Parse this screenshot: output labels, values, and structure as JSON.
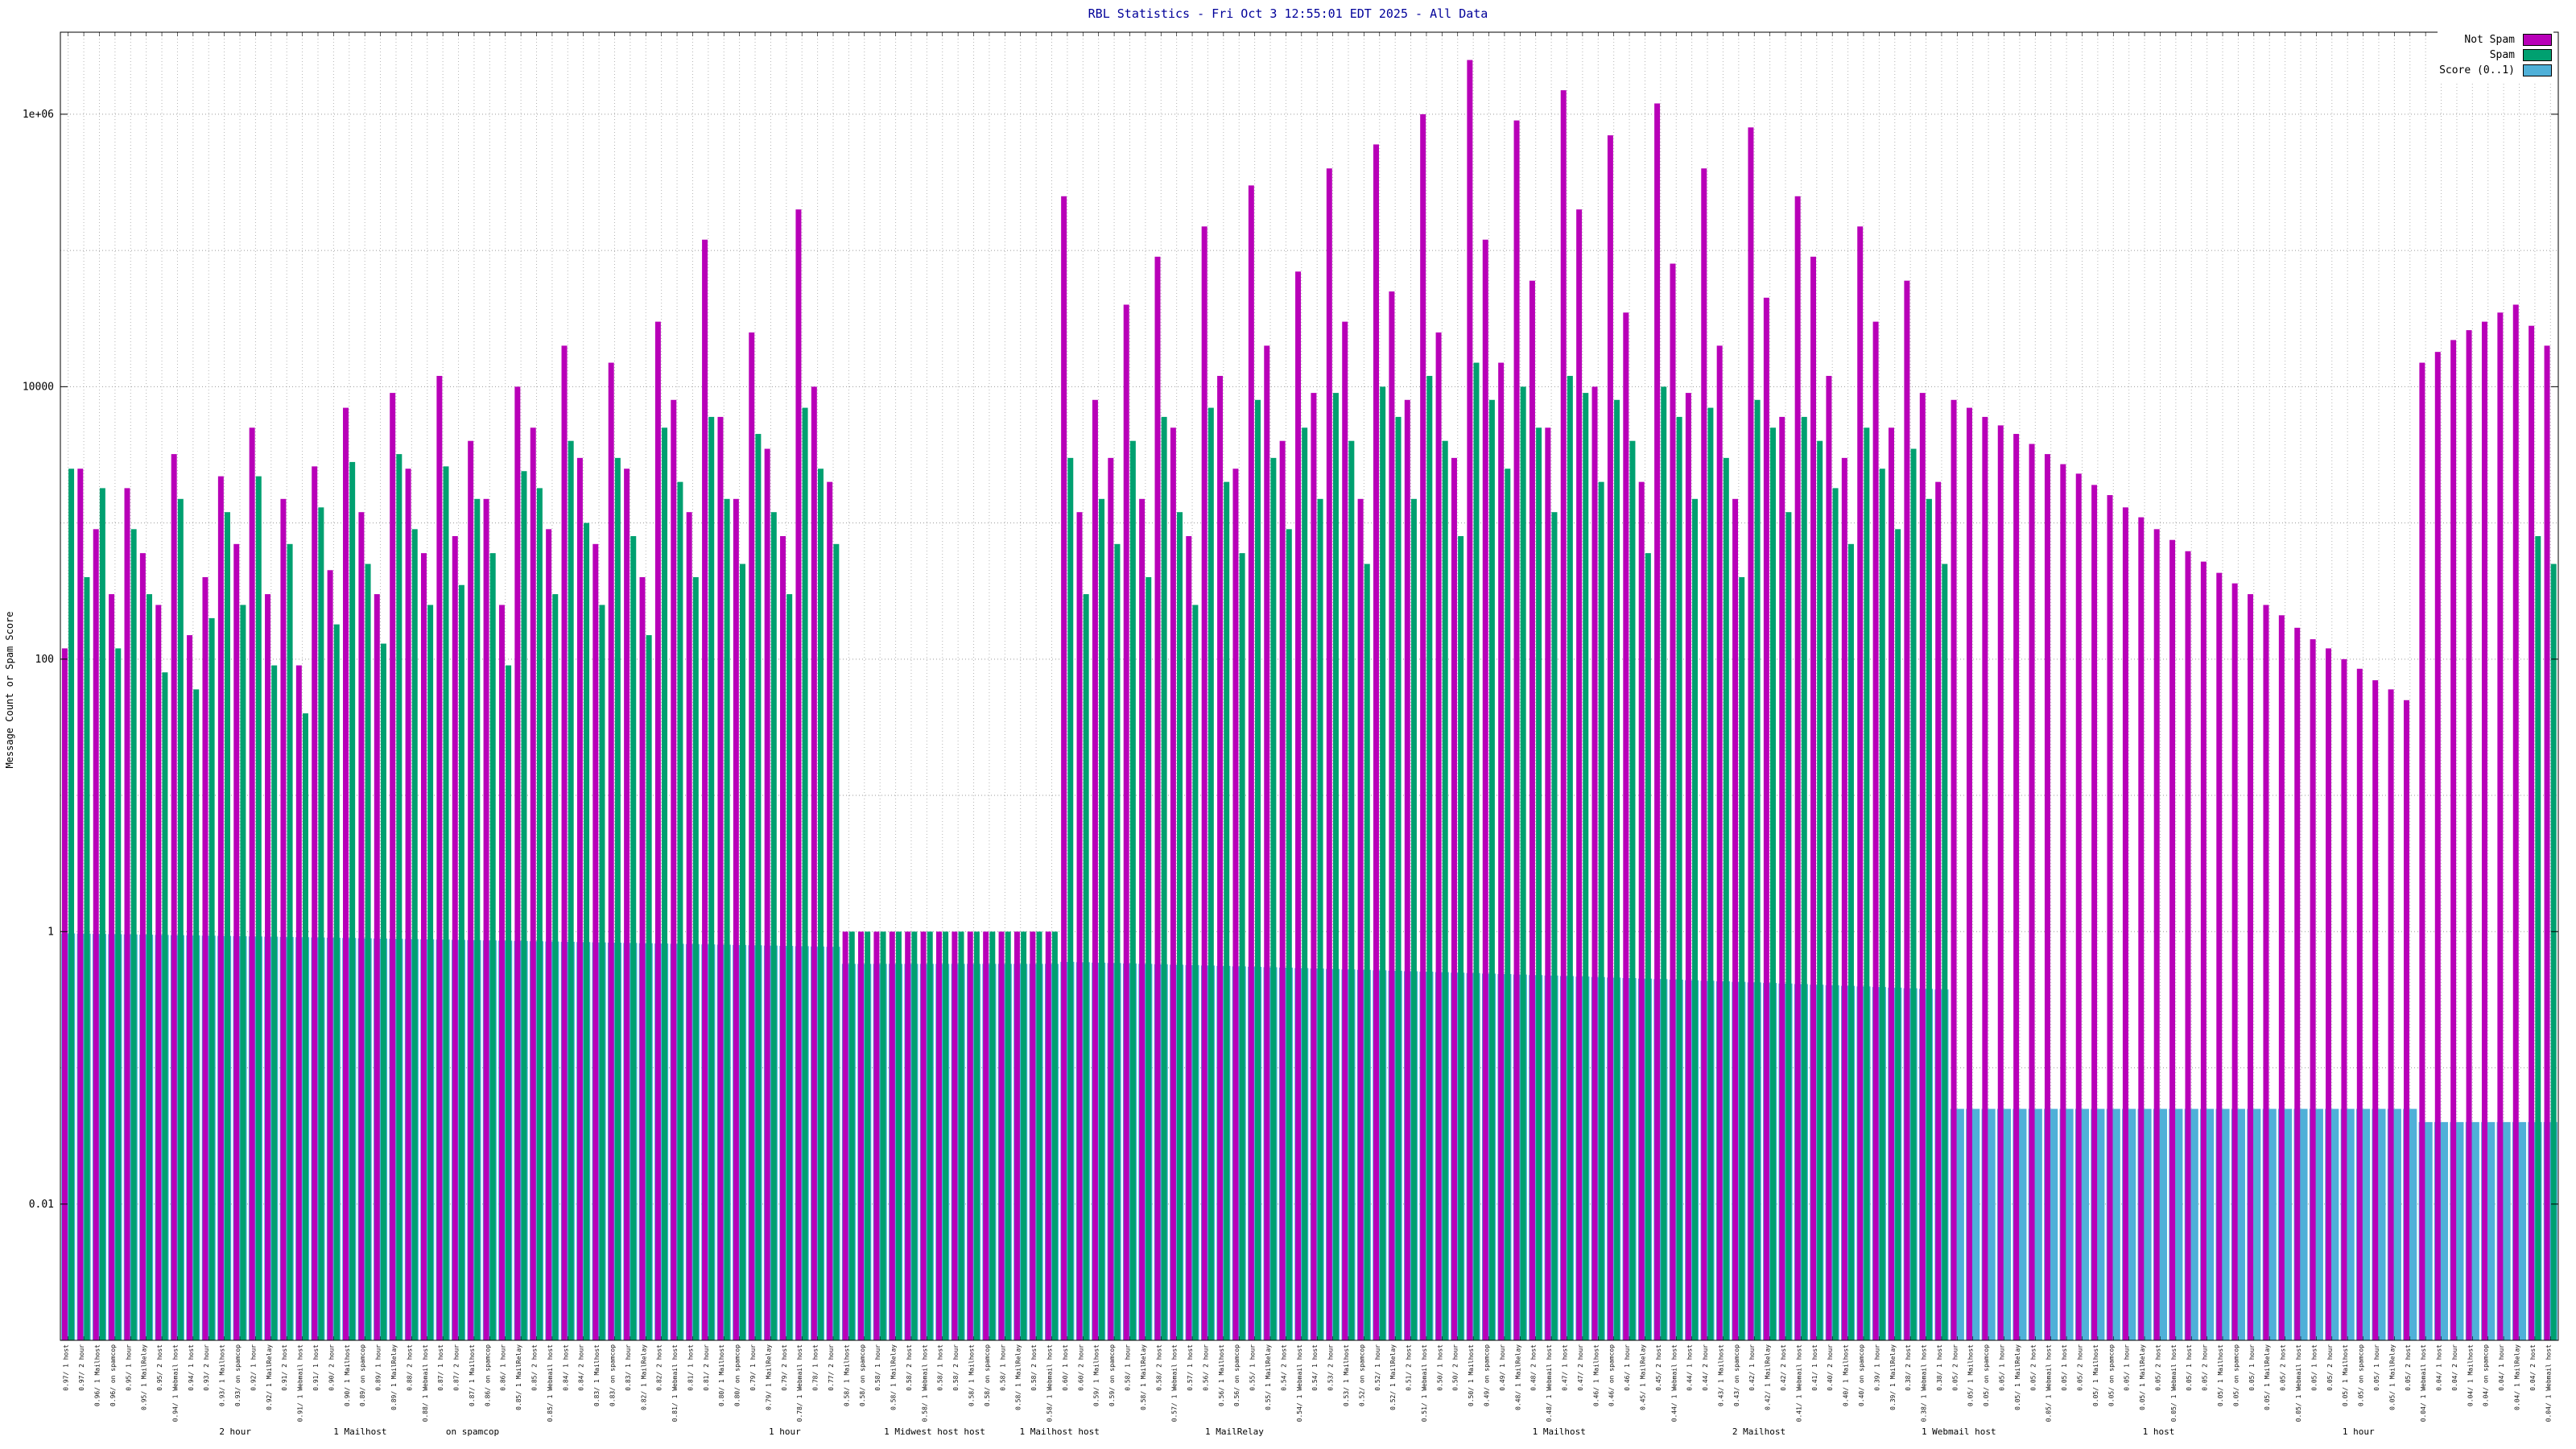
{
  "chart_data": {
    "type": "bar",
    "title": "RBL Statistics - Fri Oct 3 12:55:01 EDT 2025 - All Data",
    "title_color": "#000099",
    "ylabel": "Message Count or Spam Score",
    "log_y": true,
    "y_min": 0.001,
    "y_max": 4000000,
    "grid": true,
    "legend_position": "top-right",
    "yticks": [
      {
        "v": 1000000,
        "label": "1e+06"
      },
      {
        "v": 10000,
        "label": "10000"
      },
      {
        "v": 100,
        "label": "100"
      },
      {
        "v": 1,
        "label": "1"
      },
      {
        "v": 0.01,
        "label": "0.01"
      }
    ],
    "xtick_pool": [
      "1 host",
      "2 hour",
      "1 Mailhost",
      "on spamcop",
      "1 hour",
      "1 MailRelay",
      "2 host",
      "1 Webmail host"
    ],
    "x_annotations": [
      {
        "t": "2 hour",
        "f": 0.07
      },
      {
        "t": "1 Mailhost",
        "f": 0.12
      },
      {
        "t": "on spamcop",
        "f": 0.165
      },
      {
        "t": "1 hour",
        "f": 0.29
      },
      {
        "t": "1 Midwest host host",
        "f": 0.35
      },
      {
        "t": "1 Mailhost host",
        "f": 0.4
      },
      {
        "t": "1 MailRelay",
        "f": 0.47
      },
      {
        "t": "1 Mailhost",
        "f": 0.6
      },
      {
        "t": "2 Mailhost",
        "f": 0.68
      },
      {
        "t": "1 Webmail host",
        "f": 0.76
      },
      {
        "t": "1 host",
        "f": 0.84
      },
      {
        "t": "1 hour",
        "f": 0.92
      }
    ],
    "series": [
      {
        "name": "Not Spam",
        "color": "#b800b8",
        "values": [
          120,
          2500,
          900,
          300,
          1800,
          600,
          250,
          3200,
          150,
          400,
          2200,
          700,
          5000,
          300,
          1500,
          90,
          2600,
          450,
          7000,
          1200,
          300,
          9000,
          2500,
          600,
          12000,
          800,
          4000,
          1500,
          250,
          10000,
          5000,
          900,
          20000,
          3000,
          700,
          15000,
          2500,
          400,
          30000,
          8000,
          1200,
          120000,
          6000,
          1500,
          25000,
          3500,
          800,
          200000,
          10000,
          2000,
          1,
          1,
          1,
          1,
          1,
          1,
          1,
          1,
          1,
          1,
          1,
          1,
          1,
          1,
          250000,
          1200,
          8000,
          3000,
          40000,
          1500,
          90000,
          5000,
          800,
          150000,
          12000,
          2500,
          300000,
          20000,
          4000,
          70000,
          9000,
          400000,
          30000,
          1500,
          600000,
          50000,
          8000,
          1000000,
          25000,
          3000,
          2500000,
          120000,
          15000,
          900000,
          60000,
          5000,
          1500000,
          200000,
          10000,
          700000,
          35000,
          2000,
          1200000,
          80000,
          9000,
          400000,
          20000,
          1500,
          800000,
          45000,
          6000,
          250000,
          90000,
          12000,
          3000,
          150000,
          30000,
          5000,
          60000,
          9000,
          2000,
          8000,
          7000,
          6000,
          5200,
          4500,
          3800,
          3200,
          2700,
          2300,
          1900,
          1600,
          1300,
          1100,
          900,
          750,
          620,
          520,
          430,
          360,
          300,
          250,
          210,
          170,
          140,
          120,
          100,
          85,
          70,
          60,
          50,
          15000,
          18000,
          22000,
          26000,
          30000,
          35000,
          40000,
          28000,
          20000
        ]
      },
      {
        "name": "Spam",
        "color": "#00a070",
        "values": [
          2500,
          400,
          1800,
          120,
          900,
          300,
          80,
          1500,
          60,
          200,
          1200,
          250,
          2200,
          90,
          700,
          40,
          1300,
          180,
          2800,
          500,
          130,
          3200,
          900,
          250,
          2600,
          350,
          1500,
          600,
          90,
          2400,
          1800,
          300,
          4000,
          1000,
          250,
          3000,
          800,
          150,
          5000,
          2000,
          400,
          6000,
          1500,
          500,
          4500,
          1200,
          300,
          7000,
          2500,
          700,
          1,
          1,
          1,
          1,
          1,
          1,
          1,
          1,
          1,
          1,
          1,
          1,
          1,
          1,
          3000,
          300,
          1500,
          700,
          4000,
          400,
          6000,
          1200,
          250,
          7000,
          2000,
          600,
          8000,
          3000,
          900,
          5000,
          1500,
          9000,
          4000,
          500,
          10000,
          6000,
          1500,
          12000,
          4000,
          800,
          15000,
          8000,
          2500,
          10000,
          5000,
          1200,
          12000,
          9000,
          2000,
          8000,
          4000,
          600,
          10000,
          6000,
          1500,
          7000,
          3000,
          400,
          8000,
          5000,
          1200,
          6000,
          4000,
          1800,
          700,
          5000,
          2500,
          900,
          3500,
          1500,
          500,
          null,
          null,
          null,
          null,
          null,
          null,
          null,
          null,
          null,
          null,
          null,
          null,
          null,
          null,
          null,
          null,
          null,
          null,
          null,
          null,
          null,
          null,
          null,
          null,
          null,
          null,
          null,
          null,
          null,
          null,
          null,
          null,
          null,
          null,
          null,
          null,
          null,
          800,
          500
        ]
      },
      {
        "name": "Score (0..1)",
        "color": "#4fb0d8",
        "values": [
          0.97,
          0.966,
          0.962,
          0.958,
          0.954,
          0.95,
          0.946,
          0.942,
          0.938,
          0.934,
          0.93,
          0.926,
          0.922,
          0.918,
          0.914,
          0.91,
          0.906,
          0.902,
          0.898,
          0.894,
          0.89,
          0.886,
          0.882,
          0.878,
          0.874,
          0.87,
          0.866,
          0.862,
          0.858,
          0.854,
          0.85,
          0.846,
          0.842,
          0.838,
          0.834,
          0.83,
          0.826,
          0.822,
          0.818,
          0.814,
          0.81,
          0.806,
          0.802,
          0.798,
          0.794,
          0.79,
          0.786,
          0.782,
          0.778,
          0.774,
          0.58,
          0.58,
          0.58,
          0.58,
          0.58,
          0.58,
          0.58,
          0.58,
          0.58,
          0.58,
          0.58,
          0.58,
          0.58,
          0.58,
          0.6,
          0.596,
          0.592,
          0.588,
          0.584,
          0.58,
          0.576,
          0.572,
          0.568,
          0.564,
          0.56,
          0.556,
          0.552,
          0.548,
          0.544,
          0.54,
          0.536,
          0.532,
          0.528,
          0.524,
          0.52,
          0.516,
          0.512,
          0.508,
          0.504,
          0.5,
          0.496,
          0.492,
          0.488,
          0.484,
          0.48,
          0.476,
          0.472,
          0.468,
          0.464,
          0.46,
          0.456,
          0.452,
          0.448,
          0.444,
          0.44,
          0.436,
          0.432,
          0.428,
          0.424,
          0.42,
          0.416,
          0.412,
          0.408,
          0.404,
          0.4,
          0.396,
          0.392,
          0.388,
          0.384,
          0.38,
          0.376,
          0.05,
          0.05,
          0.05,
          0.05,
          0.05,
          0.05,
          0.05,
          0.05,
          0.05,
          0.05,
          0.05,
          0.05,
          0.05,
          0.05,
          0.05,
          0.05,
          0.05,
          0.05,
          0.05,
          0.05,
          0.05,
          0.05,
          0.05,
          0.05,
          0.05,
          0.05,
          0.05,
          0.05,
          0.05,
          0.05,
          0.04,
          0.04,
          0.04,
          0.04,
          0.04,
          0.04,
          0.04,
          0.04,
          0.04
        ]
      }
    ]
  }
}
